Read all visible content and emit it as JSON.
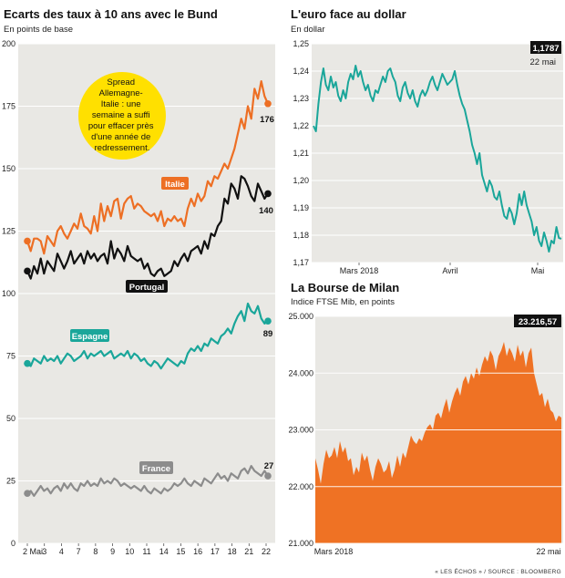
{
  "footer": {
    "source": "« LES ÉCHOS » / SOURCE : BLOOMBERG"
  },
  "colors": {
    "panel_bg": "#e9e8e4",
    "grid": "#ffffff",
    "orange": "#ed6f24",
    "black": "#111111",
    "teal": "#1aa69a",
    "gray": "#8c8c8c",
    "fill": "#ef7224"
  },
  "chart_data": [
    {
      "id": "spreads",
      "type": "line",
      "title": "Ecarts des taux à 10 ans avec le Bund",
      "subtitle": "En points de base",
      "ylim": [
        0,
        200
      ],
      "yticks": [
        0,
        25,
        50,
        75,
        100,
        125,
        150,
        175,
        200
      ],
      "x_tick_labels": [
        "2 Mai",
        "3",
        "4",
        "7",
        "8",
        "9",
        "10",
        "11",
        "14",
        "15",
        "16",
        "17",
        "18",
        "21",
        "22"
      ],
      "x_days": 15,
      "note": {
        "lines": [
          "Spread",
          "Allemagne-",
          "Italie : une",
          "semaine a suffi",
          "pour effacer près",
          "d'une année de",
          "redressement."
        ],
        "bg": "#ffe000"
      },
      "series": [
        {
          "name": "Italie",
          "color": "#ed6f24",
          "last_label": "176",
          "values": [
            121,
            117,
            122,
            122,
            121,
            116,
            123,
            121,
            119,
            125,
            127,
            124,
            122,
            125,
            128,
            126,
            132,
            127,
            126,
            124,
            131,
            125,
            136,
            129,
            135,
            131,
            137,
            138,
            130,
            136,
            138,
            139,
            134,
            136,
            135,
            133,
            132,
            131,
            132,
            129,
            133,
            127,
            130,
            129,
            131,
            129,
            130,
            127,
            134,
            138,
            135,
            140,
            137,
            139,
            145,
            143,
            147,
            146,
            149,
            152,
            150,
            154,
            158,
            164,
            170,
            166,
            175,
            170,
            182,
            178,
            185,
            179,
            176
          ]
        },
        {
          "name": "Portugal",
          "color": "#111111",
          "last_label": "140",
          "values": [
            109,
            106,
            111,
            108,
            114,
            108,
            113,
            111,
            109,
            116,
            113,
            110,
            113,
            117,
            112,
            114,
            116,
            112,
            117,
            114,
            116,
            113,
            115,
            116,
            112,
            121,
            114,
            118,
            116,
            113,
            119,
            115,
            114,
            113,
            114,
            110,
            112,
            108,
            107,
            109,
            110,
            107,
            108,
            109,
            113,
            111,
            114,
            116,
            113,
            117,
            118,
            119,
            116,
            121,
            118,
            124,
            123,
            127,
            129,
            138,
            136,
            144,
            142,
            138,
            147,
            146,
            143,
            139,
            137,
            144,
            141,
            138,
            140
          ]
        },
        {
          "name": "Espagne",
          "color": "#1aa69a",
          "last_label": "89",
          "values": [
            72,
            71,
            74,
            73,
            72,
            75,
            73,
            74,
            73,
            75,
            72,
            74,
            76,
            75,
            73,
            74,
            75,
            77,
            74,
            76,
            75,
            76,
            77,
            75,
            76,
            77,
            74,
            75,
            76,
            75,
            77,
            74,
            76,
            75,
            73,
            74,
            72,
            71,
            73,
            72,
            70,
            72,
            74,
            73,
            72,
            71,
            73,
            72,
            76,
            78,
            77,
            79,
            77,
            80,
            79,
            82,
            81,
            80,
            83,
            84,
            86,
            84,
            88,
            91,
            93,
            89,
            96,
            93,
            92,
            95,
            90,
            88,
            89
          ]
        },
        {
          "name": "France",
          "color": "#8c8c8c",
          "last_label": "27",
          "values": [
            20,
            21,
            19,
            21,
            23,
            21,
            22,
            20,
            22,
            23,
            21,
            24,
            22,
            24,
            22,
            21,
            24,
            23,
            25,
            23,
            24,
            23,
            26,
            24,
            25,
            24,
            26,
            25,
            23,
            24,
            23,
            22,
            23,
            22,
            21,
            23,
            21,
            20,
            22,
            21,
            20,
            22,
            21,
            22,
            24,
            23,
            24,
            26,
            24,
            23,
            25,
            24,
            23,
            26,
            25,
            24,
            26,
            28,
            26,
            27,
            25,
            28,
            27,
            26,
            29,
            30,
            28,
            31,
            29,
            28,
            27,
            29,
            27
          ]
        }
      ]
    },
    {
      "id": "eurusd",
      "type": "line",
      "title": "L'euro face au dollar",
      "subtitle": "En dollar",
      "ylim": [
        1.17,
        1.25
      ],
      "yticks": [
        1.17,
        1.18,
        1.19,
        1.2,
        1.21,
        1.22,
        1.23,
        1.24,
        1.25
      ],
      "x_tick_labels": [
        "Mars 2018",
        "Avril",
        "Mai"
      ],
      "last_value_label": "1,1787",
      "last_date_label": "22 mai",
      "series": [
        {
          "name": "",
          "color": "#1aa69a",
          "values": [
            1.22,
            1.218,
            1.228,
            1.236,
            1.241,
            1.235,
            1.233,
            1.238,
            1.234,
            1.236,
            1.231,
            1.229,
            1.233,
            1.23,
            1.236,
            1.239,
            1.237,
            1.242,
            1.238,
            1.24,
            1.236,
            1.233,
            1.235,
            1.231,
            1.229,
            1.233,
            1.232,
            1.235,
            1.238,
            1.236,
            1.24,
            1.241,
            1.238,
            1.236,
            1.231,
            1.229,
            1.234,
            1.236,
            1.232,
            1.23,
            1.233,
            1.229,
            1.227,
            1.231,
            1.233,
            1.231,
            1.233,
            1.236,
            1.238,
            1.235,
            1.233,
            1.236,
            1.239,
            1.237,
            1.235,
            1.236,
            1.237,
            1.24,
            1.235,
            1.231,
            1.228,
            1.226,
            1.222,
            1.218,
            1.213,
            1.21,
            1.206,
            1.21,
            1.202,
            1.199,
            1.196,
            1.2,
            1.198,
            1.194,
            1.193,
            1.196,
            1.191,
            1.187,
            1.186,
            1.19,
            1.188,
            1.184,
            1.188,
            1.195,
            1.191,
            1.196,
            1.191,
            1.188,
            1.185,
            1.18,
            1.183,
            1.178,
            1.176,
            1.181,
            1.178,
            1.174,
            1.178,
            1.177,
            1.183,
            1.179,
            1.1787
          ]
        }
      ]
    },
    {
      "id": "ftsemib",
      "type": "area",
      "title": "La Bourse de Milan",
      "subtitle": "Indice FTSE Mib, en points",
      "ylim": [
        21000,
        25000
      ],
      "yticks": [
        21000,
        22000,
        23000,
        24000,
        25000
      ],
      "ytick_labels": [
        "21.000",
        "22.000",
        "23.000",
        "24.000",
        "25.000"
      ],
      "x_tick_labels": [
        "Mars 2018",
        "22 mai"
      ],
      "last_value_label": "23.216,57",
      "series": [
        {
          "name": "",
          "color": "#ef7224",
          "values": [
            22500,
            22300,
            22050,
            22400,
            22650,
            22500,
            22550,
            22700,
            22500,
            22800,
            22600,
            22700,
            22450,
            22500,
            22200,
            22350,
            22250,
            22600,
            22450,
            22550,
            22300,
            22100,
            22350,
            22500,
            22400,
            22250,
            22300,
            22450,
            22150,
            22300,
            22550,
            22350,
            22600,
            22500,
            22700,
            22900,
            22800,
            22750,
            22850,
            22800,
            22950,
            23050,
            23100,
            23000,
            23250,
            23300,
            23200,
            23400,
            23550,
            23300,
            23500,
            23650,
            23750,
            23600,
            23850,
            23950,
            23800,
            24000,
            23900,
            24100,
            23950,
            24150,
            24300,
            24200,
            24400,
            24300,
            24050,
            24300,
            24400,
            24550,
            24300,
            24450,
            24350,
            24200,
            24500,
            24300,
            24400,
            24100,
            24350,
            24450,
            24000,
            23800,
            23600,
            23650,
            23400,
            23550,
            23350,
            23300,
            23150,
            23250,
            23216.57
          ]
        }
      ]
    }
  ]
}
